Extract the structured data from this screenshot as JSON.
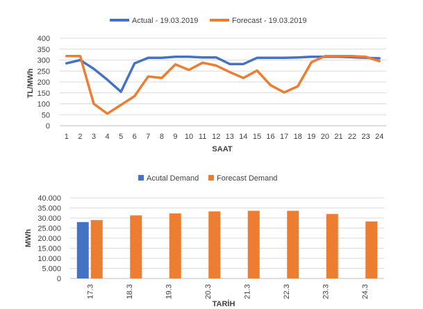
{
  "chart_data": [
    {
      "type": "line",
      "xlabel": "SAAT",
      "ylabel": "TL/MWh",
      "ylim": [
        0,
        400
      ],
      "yticks": [
        0,
        50,
        100,
        150,
        200,
        250,
        300,
        350,
        400
      ],
      "ytick_labels": [
        "0",
        "50",
        "100",
        "150",
        "200",
        "250",
        "300",
        "350",
        "400"
      ],
      "grid": true,
      "legend_position": "top",
      "x": [
        "1",
        "2",
        "3",
        "4",
        "5",
        "6",
        "7",
        "8",
        "9",
        "10",
        "11",
        "12",
        "13",
        "14",
        "15",
        "16",
        "17",
        "18",
        "19",
        "20",
        "21",
        "22",
        "23",
        "24"
      ],
      "series": [
        {
          "name": "Actual - 19.03.2019",
          "color": "#4472C4",
          "values": [
            285,
            300,
            260,
            210,
            155,
            285,
            310,
            310,
            315,
            315,
            312,
            312,
            282,
            282,
            310,
            310,
            310,
            312,
            315,
            315,
            315,
            313,
            310,
            308
          ]
        },
        {
          "name": "Forecast - 19.03.2019",
          "color": "#ED7D31",
          "values": [
            318,
            318,
            100,
            55,
            95,
            135,
            225,
            218,
            280,
            255,
            288,
            275,
            245,
            218,
            252,
            185,
            152,
            180,
            290,
            318,
            318,
            318,
            315,
            295
          ]
        }
      ]
    },
    {
      "type": "bar",
      "xlabel": "TARİH",
      "ylabel": "MWh",
      "ylim": [
        0,
        40000
      ],
      "yticks": [
        0,
        5000,
        10000,
        15000,
        20000,
        25000,
        30000,
        35000,
        40000
      ],
      "ytick_labels": [
        "0",
        "5.000",
        "10.000",
        "15.000",
        "20.000",
        "25.000",
        "30.000",
        "35.000",
        "40.000"
      ],
      "grid": true,
      "legend_position": "top",
      "categories": [
        "17.3",
        "18.3",
        "19.3",
        "20.3",
        "21.3",
        "22.3",
        "23.3",
        "24.3"
      ],
      "series": [
        {
          "name": "Acutal Demand",
          "color": "#4472C4",
          "values": [
            28000,
            null,
            null,
            null,
            null,
            null,
            null,
            null
          ]
        },
        {
          "name": "Forecast Demand",
          "color": "#ED7D31",
          "values": [
            29000,
            31300,
            32300,
            33300,
            33600,
            33600,
            32000,
            28300
          ]
        }
      ]
    }
  ]
}
